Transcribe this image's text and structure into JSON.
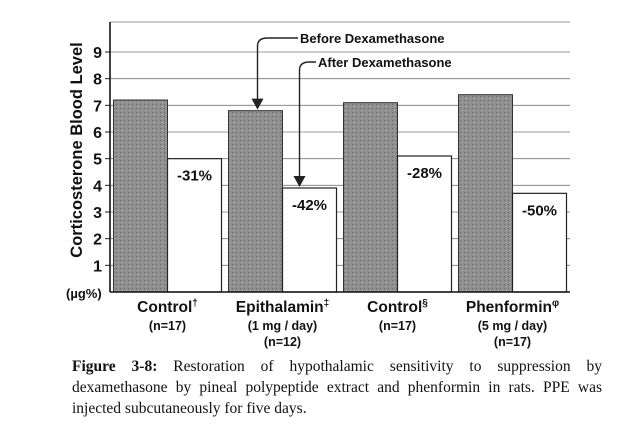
{
  "chart_data": {
    "type": "bar",
    "ylabel": "Corticosterone Blood Level",
    "yunit": "(µg%)",
    "ylim": [
      0,
      10
    ],
    "yticks": [
      1,
      2,
      3,
      4,
      5,
      6,
      7,
      8,
      9
    ],
    "grid": true,
    "categories": [
      {
        "name": "Control",
        "mark": "†",
        "sub": [
          "(n=17)"
        ]
      },
      {
        "name": "Epithalamin",
        "mark": "‡",
        "sub": [
          "(1 mg / day)",
          "(n=12)"
        ]
      },
      {
        "name": "Control",
        "mark": "§",
        "sub": [
          "(n=17)"
        ]
      },
      {
        "name": "Phenformin",
        "mark": "φ",
        "sub": [
          "(5 mg / day)",
          "(n=17)"
        ]
      }
    ],
    "series": [
      {
        "name": "Before Dexamethasone",
        "values": [
          7.2,
          6.8,
          7.1,
          7.4
        ],
        "fill": "#8a8a8a"
      },
      {
        "name": "After Dexamethasone",
        "values": [
          5.0,
          3.9,
          5.1,
          3.7
        ],
        "fill": "#ffffff"
      }
    ],
    "data_labels": [
      "-31%",
      "-42%",
      "-28%",
      "-50%"
    ],
    "annotations": [
      "Before Dexamethasone",
      "After Dexamethasone"
    ]
  },
  "caption": {
    "label": "Figure 3-8:",
    "text": "Restoration of hypothalamic sensitivity to suppression by dexamethasone by pineal polypeptide extract and phenformin in rats. PPE was injected subcutaneously for five days."
  }
}
